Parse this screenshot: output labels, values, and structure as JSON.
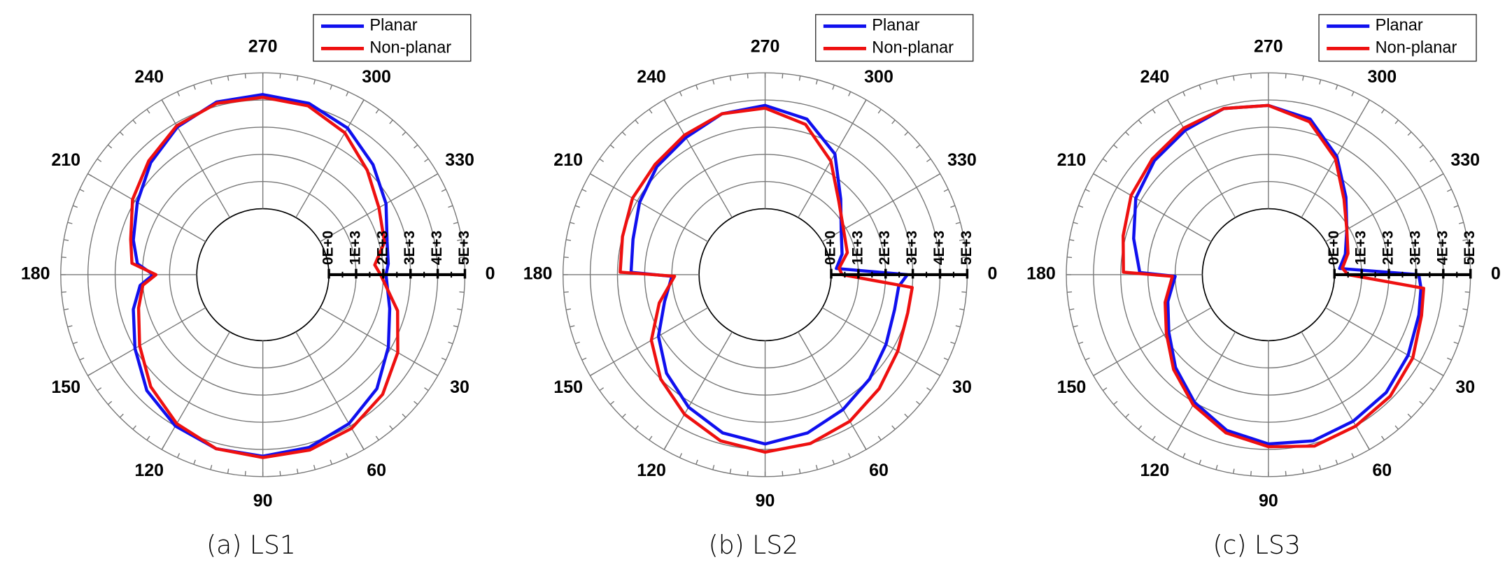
{
  "chart_data": [
    {
      "type": "polar",
      "title": "(a) LS1",
      "legend": "upper right",
      "grid": true,
      "rlim": [
        0,
        5000
      ],
      "rticks": [
        {
          "value": 0,
          "label": "0E+0"
        },
        {
          "value": 1000,
          "label": "1E+3"
        },
        {
          "value": 2000,
          "label": "2E+3"
        },
        {
          "value": 3000,
          "label": "3E+3"
        },
        {
          "value": 4000,
          "label": "4E+3"
        },
        {
          "value": 5000,
          "label": "5E+3"
        }
      ],
      "thetaticks": [
        0,
        30,
        60,
        90,
        120,
        150,
        180,
        210,
        240,
        270,
        300,
        330
      ],
      "series": [
        {
          "name": "Planar",
          "color": "#1010ee",
          "theta": [
            0,
            15,
            30,
            45,
            60,
            75,
            90,
            105,
            120,
            135,
            150,
            165,
            175,
            180,
            185,
            195,
            210,
            225,
            240,
            255,
            270,
            285,
            300,
            315,
            330,
            345,
            355
          ],
          "values": [
            2100,
            2400,
            2900,
            3500,
            3900,
            4150,
            4250,
            4200,
            4000,
            3600,
            3000,
            2500,
            2100,
            1600,
            2200,
            2500,
            2900,
            3400,
            3850,
            4150,
            4200,
            4100,
            3800,
            3300,
            2800,
            2300,
            2200
          ]
        },
        {
          "name": "Non-planar",
          "color": "#ee1010",
          "theta": [
            0,
            15,
            30,
            45,
            60,
            75,
            90,
            105,
            120,
            135,
            150,
            165,
            175,
            180,
            185,
            195,
            210,
            225,
            240,
            255,
            270,
            285,
            300,
            315,
            330,
            345,
            355
          ],
          "values": [
            1900,
            2700,
            3300,
            3800,
            4100,
            4250,
            4300,
            4200,
            3900,
            3400,
            2800,
            2300,
            2000,
            1500,
            2400,
            2600,
            3100,
            3500,
            3900,
            4100,
            4100,
            4000,
            3600,
            3000,
            2500,
            2200,
            1700
          ]
        }
      ]
    },
    {
      "type": "polar",
      "title": "(b) LS2",
      "legend": "upper right",
      "grid": true,
      "rlim": [
        0,
        5000
      ],
      "rticks": [
        {
          "value": 0,
          "label": "0E+0"
        },
        {
          "value": 1000,
          "label": "1E+3"
        },
        {
          "value": 2000,
          "label": "2E+3"
        },
        {
          "value": 3000,
          "label": "3E+3"
        },
        {
          "value": 4000,
          "label": "4E+3"
        },
        {
          "value": 5000,
          "label": "5E+3"
        }
      ],
      "thetaticks": [
        0,
        30,
        60,
        90,
        120,
        150,
        180,
        210,
        240,
        270,
        300,
        330
      ],
      "series": [
        {
          "name": "Planar",
          "color": "#1010ee",
          "theta": [
            0,
            5,
            15,
            30,
            45,
            60,
            75,
            90,
            105,
            120,
            135,
            150,
            165,
            179,
            181,
            195,
            210,
            225,
            240,
            255,
            270,
            285,
            300,
            315,
            330,
            345,
            355
          ],
          "values": [
            2800,
            2500,
            2500,
            2700,
            3000,
            3300,
            3600,
            3800,
            3600,
            3200,
            2700,
            2100,
            1400,
            1000,
            2500,
            2600,
            2900,
            3200,
            3400,
            3700,
            3800,
            3500,
            2700,
            1500,
            800,
            500,
            200
          ]
        },
        {
          "name": "Non-planar",
          "color": "#ee1010",
          "theta": [
            0,
            5,
            15,
            30,
            45,
            60,
            75,
            90,
            105,
            120,
            135,
            150,
            165,
            179,
            181,
            195,
            210,
            225,
            240,
            255,
            270,
            285,
            300,
            315,
            330,
            345,
            355
          ],
          "values": [
            400,
            3000,
            3000,
            3200,
            3500,
            3800,
            4000,
            4100,
            3900,
            3500,
            3000,
            2400,
            1600,
            900,
            2900,
            3000,
            3200,
            3300,
            3500,
            3700,
            3700,
            3300,
            2400,
            1400,
            900,
            700,
            300
          ]
        }
      ]
    },
    {
      "type": "polar",
      "title": "(c) LS3",
      "legend": "upper right",
      "grid": true,
      "rlim": [
        0,
        5000
      ],
      "rticks": [
        {
          "value": 0,
          "label": "0E+0"
        },
        {
          "value": 1000,
          "label": "1E+3"
        },
        {
          "value": 2000,
          "label": "2E+3"
        },
        {
          "value": 3000,
          "label": "3E+3"
        },
        {
          "value": 4000,
          "label": "4E+3"
        },
        {
          "value": 5000,
          "label": "5E+3"
        }
      ],
      "thetaticks": [
        0,
        30,
        60,
        90,
        120,
        150,
        180,
        210,
        240,
        270,
        300,
        330
      ],
      "series": [
        {
          "name": "Planar",
          "color": "#1010ee",
          "theta": [
            0,
            5,
            15,
            30,
            45,
            60,
            75,
            90,
            105,
            120,
            135,
            150,
            165,
            179,
            181,
            195,
            210,
            225,
            240,
            255,
            270,
            285,
            300,
            315,
            330,
            345,
            355
          ],
          "values": [
            3100,
            3200,
            3300,
            3500,
            3700,
            3800,
            3900,
            3800,
            3500,
            3000,
            2400,
            1800,
            1400,
            1000,
            2300,
            2700,
            3200,
            3500,
            3700,
            3900,
            3800,
            3500,
            2600,
            1600,
            900,
            500,
            200
          ]
        },
        {
          "name": "Non-planar",
          "color": "#ee1010",
          "theta": [
            0,
            5,
            15,
            30,
            45,
            60,
            75,
            90,
            105,
            120,
            135,
            150,
            165,
            179,
            181,
            195,
            210,
            225,
            240,
            255,
            270,
            285,
            300,
            315,
            330,
            345,
            355
          ],
          "values": [
            500,
            3300,
            3400,
            3700,
            3900,
            4000,
            4100,
            3900,
            3600,
            3100,
            2500,
            1900,
            1500,
            1100,
            2900,
            3100,
            3400,
            3600,
            3800,
            3900,
            3800,
            3400,
            2500,
            1500,
            900,
            600,
            300
          ]
        }
      ]
    }
  ]
}
